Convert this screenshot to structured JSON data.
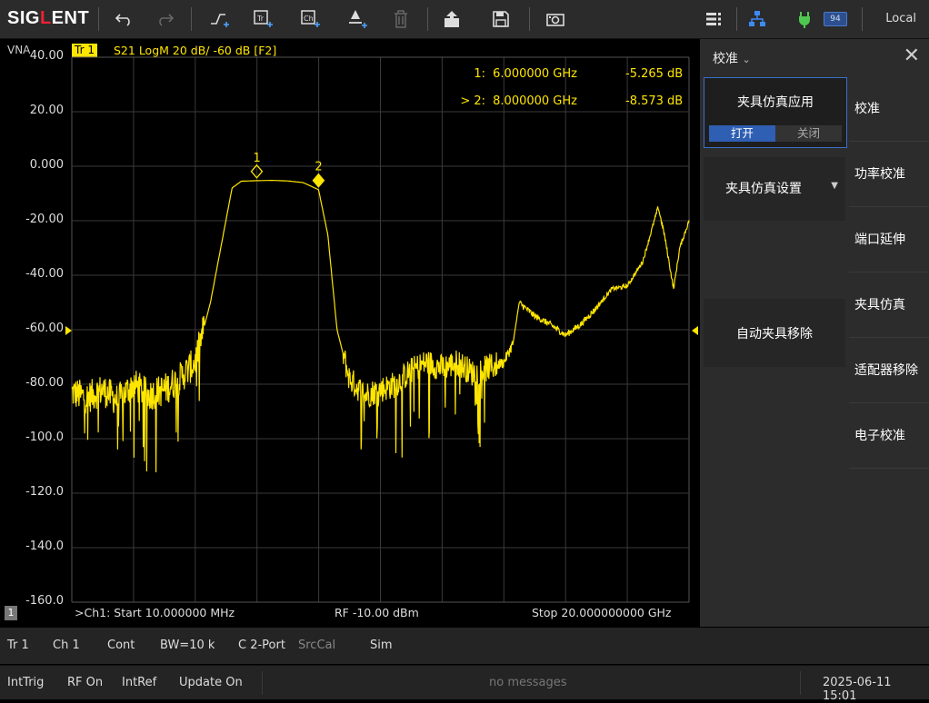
{
  "toolbar": {
    "logo_text_1": "SIG",
    "logo_text_2": "L",
    "logo_text_3": "ENT",
    "icons": [
      "undo-icon",
      "redo-icon",
      "add-trace-icon",
      "add-trace-window-icon",
      "add-channel-icon",
      "add-marker-icon",
      "delete-icon",
      "save-recall-icon",
      "save-icon",
      "screenshot-icon"
    ],
    "battery_level": "94",
    "mode_label": "Local"
  },
  "plot": {
    "analyzer_label": "VNA",
    "trace_label": "Tr 1",
    "trace_info": "S21 LogM 20 dB/ -60 dB [F2]",
    "trace_color": "#ffe600",
    "y_ticks": [
      "40.00",
      "20.00",
      "0.000",
      "-20.00",
      "-40.00",
      "-60.00",
      "-80.00",
      "-100.0",
      "-120.0",
      "-140.0",
      "-160.0"
    ],
    "marker_table": [
      {
        "prefix": "1:",
        "freq": "6.000000 GHz",
        "value": "-5.265 dB"
      },
      {
        "prefix": "> 2:",
        "freq": "8.000000 GHz",
        "value": "-8.573 dB"
      }
    ],
    "marker_labels": [
      "1",
      "2"
    ],
    "channel_badge": "1",
    "start_text": ">Ch1: Start 10.000000 MHz",
    "rf_text": "RF -10.00 dBm",
    "stop_text": "Stop 20.000000000 GHz"
  },
  "chart_data": {
    "type": "line",
    "xlabel": "",
    "ylabel": "",
    "xlim": [
      0.01,
      20.0
    ],
    "ylim": [
      -160,
      40
    ],
    "series": [
      {
        "x": [
          0.01,
          0.5,
          1.0,
          1.5,
          2.0,
          2.5,
          3.0,
          3.5,
          4.0,
          4.5,
          5.0,
          5.2,
          5.5,
          6.0,
          6.5,
          7.0,
          7.5,
          8.0,
          8.3,
          8.6,
          9.0,
          9.5,
          10.0,
          10.5,
          11.0,
          11.5,
          12.0,
          12.5,
          13.0,
          13.5,
          14.0,
          14.3,
          14.5,
          15.0,
          15.5,
          16.0,
          16.5,
          17.0,
          17.5,
          18.0,
          18.5,
          19.0,
          19.2,
          19.5,
          19.7,
          20.0
        ],
        "y": [
          -83,
          -85,
          -82,
          -86,
          -80,
          -84,
          -82,
          -78,
          -72,
          -50,
          -20,
          -8,
          -5.5,
          -5.3,
          -5.2,
          -5.4,
          -6,
          -8.6,
          -25,
          -60,
          -78,
          -84,
          -82,
          -80,
          -75,
          -72,
          -74,
          -72,
          -76,
          -74,
          -72,
          -65,
          -50,
          -55,
          -58,
          -62,
          -58,
          -52,
          -45,
          -44,
          -35,
          -15,
          -25,
          -45,
          -30,
          -20
        ]
      }
    ]
  },
  "panel": {
    "title": "校准",
    "fixture_apply_label": "夹具仿真应用",
    "toggle_on": "打开",
    "toggle_off": "关闭",
    "fixture_setup_label": "夹具仿真设置",
    "auto_removal_label": "自动夹具移除",
    "menu": [
      "校准",
      "功率校准",
      "端口延伸",
      "夹具仿真",
      "适配器移除",
      "电子校准"
    ]
  },
  "status1": {
    "trace": "Tr 1",
    "channel": "Ch 1",
    "sweep": "Cont",
    "bw": "BW=10 k",
    "port": "C 2-Port",
    "srccal": "SrcCal",
    "sim": "Sim"
  },
  "status2": {
    "trig": "IntTrig",
    "rf": "RF On",
    "ref": "IntRef",
    "update": "Update On",
    "message": "no messages",
    "datetime": "2025-06-11 15:01"
  }
}
